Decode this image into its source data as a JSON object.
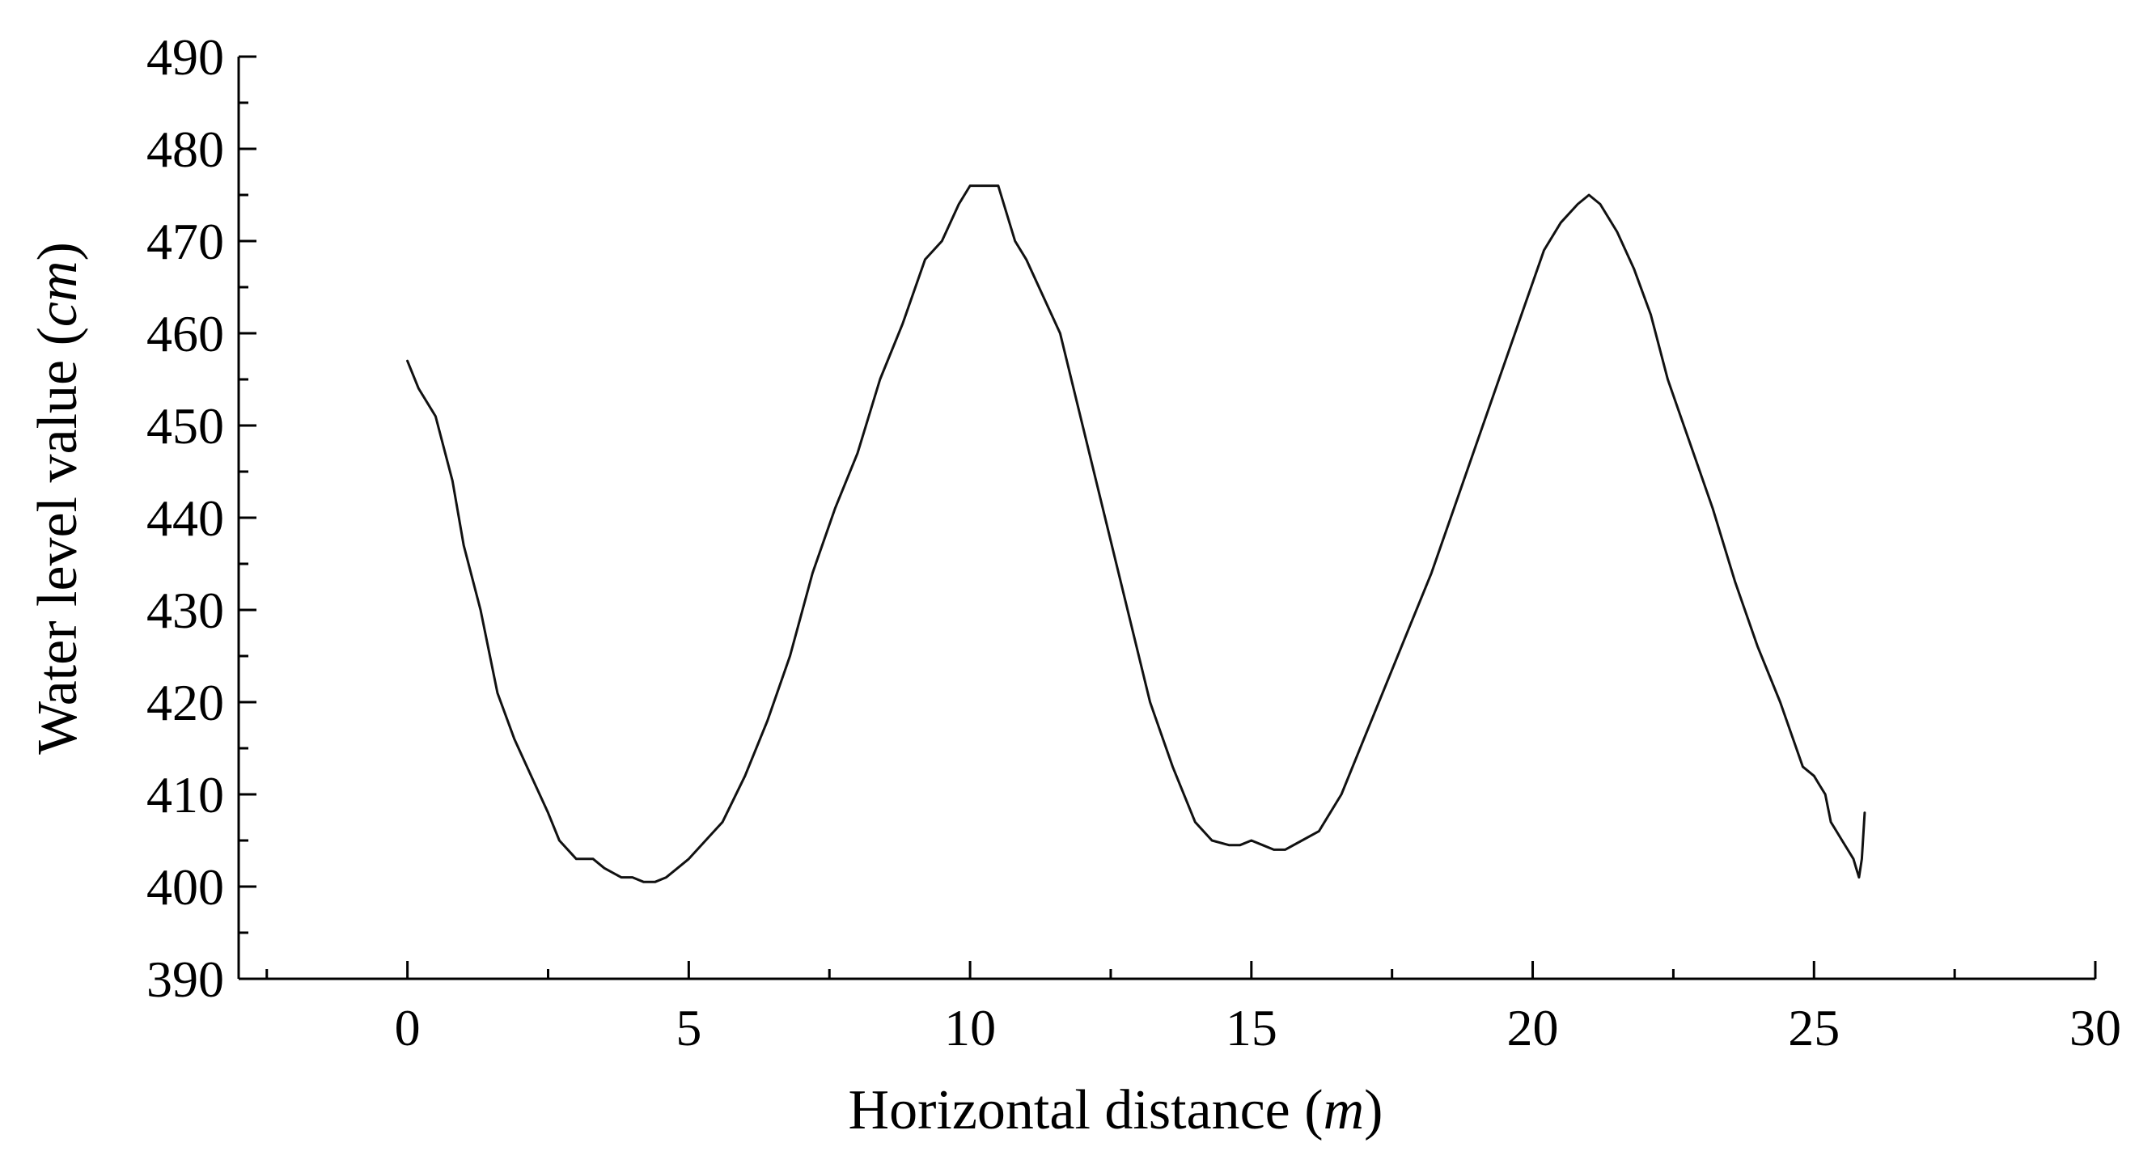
{
  "chart_data": {
    "type": "line",
    "title": "",
    "xlabel": "Horizontal distance (m)",
    "xlabel_parts": {
      "prefix": "Horizontal distance (",
      "unit": "m",
      "suffix": ")"
    },
    "ylabel": "Water level value (cm)",
    "ylabel_parts": {
      "prefix": "Water level value (",
      "unit": "cm",
      "suffix": ")"
    },
    "xlim": [
      -3,
      30
    ],
    "ylim": [
      390,
      490
    ],
    "x_ticks": [
      0,
      5,
      10,
      15,
      20,
      25,
      30
    ],
    "x_tick_labels": [
      "0",
      "5",
      "10",
      "15",
      "20",
      "25",
      "30"
    ],
    "y_ticks": [
      390,
      400,
      410,
      420,
      430,
      440,
      450,
      460,
      470,
      480,
      490
    ],
    "y_tick_labels": [
      "390",
      "400",
      "410",
      "420",
      "430",
      "440",
      "450",
      "460",
      "470",
      "480",
      "490"
    ],
    "grid": false,
    "legend": false,
    "series": [
      {
        "color": "#111111",
        "x": [
          0,
          0.2,
          0.5,
          0.8,
          1.0,
          1.3,
          1.6,
          1.9,
          2.2,
          2.5,
          2.7,
          3.0,
          3.3,
          3.5,
          3.8,
          4.0,
          4.2,
          4.4,
          4.6,
          4.8,
          5.0,
          5.3,
          5.6,
          6.0,
          6.4,
          6.8,
          7.2,
          7.6,
          8.0,
          8.4,
          8.8,
          9.2,
          9.5,
          9.8,
          10.0,
          10.2,
          10.5,
          10.8,
          11.0,
          11.3,
          11.6,
          12.0,
          12.4,
          12.8,
          13.2,
          13.6,
          14.0,
          14.3,
          14.6,
          14.8,
          15.0,
          15.2,
          15.4,
          15.6,
          15.9,
          16.2,
          16.6,
          17.0,
          17.4,
          17.8,
          18.2,
          18.6,
          19.0,
          19.4,
          19.8,
          20.2,
          20.5,
          20.8,
          21.0,
          21.2,
          21.5,
          21.8,
          22.1,
          22.4,
          22.8,
          23.2,
          23.6,
          24.0,
          24.4,
          24.8,
          25.0,
          25.1,
          25.2,
          25.3,
          25.4,
          25.5,
          25.6,
          25.7,
          25.75,
          25.8,
          25.85,
          25.9
        ],
        "y": [
          457,
          454,
          451,
          444,
          437,
          430,
          421,
          416,
          412,
          408,
          405,
          403,
          403,
          402,
          401,
          401,
          400.5,
          400.5,
          401,
          402,
          403,
          405,
          407,
          412,
          418,
          425,
          434,
          441,
          447,
          455,
          461,
          468,
          470,
          474,
          476,
          476,
          476,
          470,
          468,
          464,
          460,
          450,
          440,
          430,
          420,
          413,
          407,
          405,
          404.5,
          404.5,
          405,
          404.5,
          404,
          404,
          405,
          406,
          410,
          416,
          422,
          428,
          434,
          441,
          448,
          455,
          462,
          469,
          472,
          474,
          475,
          474,
          471,
          467,
          462,
          455,
          448,
          441,
          433,
          426,
          420,
          413,
          412,
          411,
          410,
          407,
          406,
          405,
          404,
          403,
          402,
          401,
          403,
          408
        ]
      }
    ]
  }
}
